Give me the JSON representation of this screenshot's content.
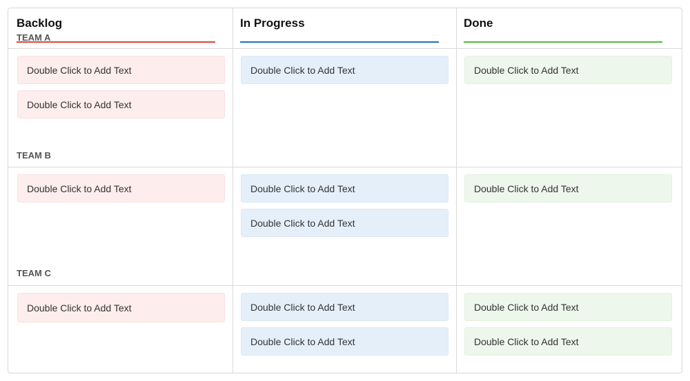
{
  "colors": {
    "backlog_accent": "#e0413e",
    "in_progress_accent": "#1f6fbf",
    "done_accent": "#52b83c",
    "backlog_card": "#fdeded",
    "in_progress_card": "#e5eff9",
    "done_card": "#eef7ec"
  },
  "columns": [
    {
      "title": "Backlog"
    },
    {
      "title": "In Progress"
    },
    {
      "title": "Done"
    }
  ],
  "teams": [
    {
      "label": "TEAM A",
      "backlog": [
        "Double Click to Add Text",
        "Double Click to Add Text"
      ],
      "in_progress": [
        "Double Click to Add Text"
      ],
      "done": [
        "Double Click to Add Text"
      ]
    },
    {
      "label": "TEAM B",
      "backlog": [
        "Double Click to Add Text"
      ],
      "in_progress": [
        "Double Click to Add Text",
        "Double Click to Add Text"
      ],
      "done": [
        "Double Click to Add Text"
      ]
    },
    {
      "label": "TEAM C",
      "backlog": [
        "Double Click to Add Text"
      ],
      "in_progress": [
        "Double Click to Add Text",
        "Double Click to Add Text"
      ],
      "done": [
        "Double Click to Add Text",
        "Double Click to Add Text"
      ]
    }
  ]
}
